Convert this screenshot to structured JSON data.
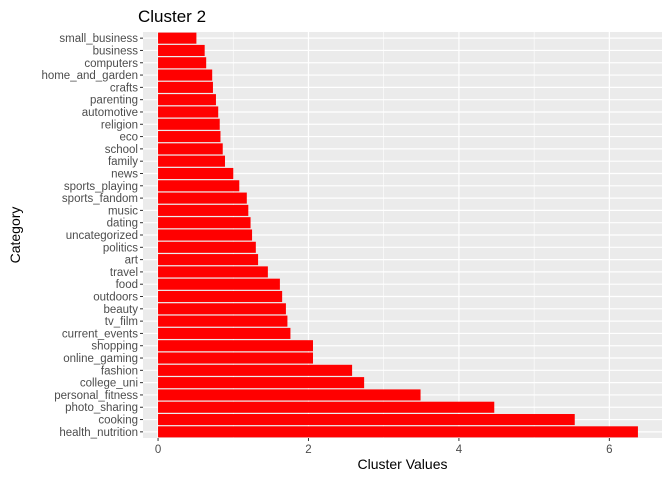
{
  "chart_data": {
    "type": "bar",
    "orientation": "horizontal",
    "title": "Cluster 2",
    "xlabel": "Cluster Values",
    "ylabel": "Category",
    "xlim": [
      -0.2,
      6.7
    ],
    "xticks": [
      0,
      2,
      4,
      6
    ],
    "grid": true,
    "bar_color": "#ff0000",
    "panel_color": "#ebebeb",
    "categories": [
      "health_nutrition",
      "cooking",
      "photo_sharing",
      "personal_fitness",
      "college_uni",
      "fashion",
      "online_gaming",
      "shopping",
      "current_events",
      "tv_film",
      "beauty",
      "outdoors",
      "food",
      "travel",
      "art",
      "politics",
      "uncategorized",
      "dating",
      "music",
      "sports_fandom",
      "sports_playing",
      "news",
      "family",
      "school",
      "eco",
      "religion",
      "automotive",
      "parenting",
      "crafts",
      "home_and_garden",
      "computers",
      "business",
      "small_business"
    ],
    "values": [
      6.38,
      5.54,
      4.47,
      3.49,
      2.74,
      2.58,
      2.06,
      2.06,
      1.76,
      1.72,
      1.7,
      1.65,
      1.62,
      1.46,
      1.33,
      1.3,
      1.25,
      1.23,
      1.2,
      1.18,
      1.08,
      1.0,
      0.89,
      0.86,
      0.83,
      0.82,
      0.8,
      0.77,
      0.73,
      0.72,
      0.64,
      0.62,
      0.51
    ]
  }
}
